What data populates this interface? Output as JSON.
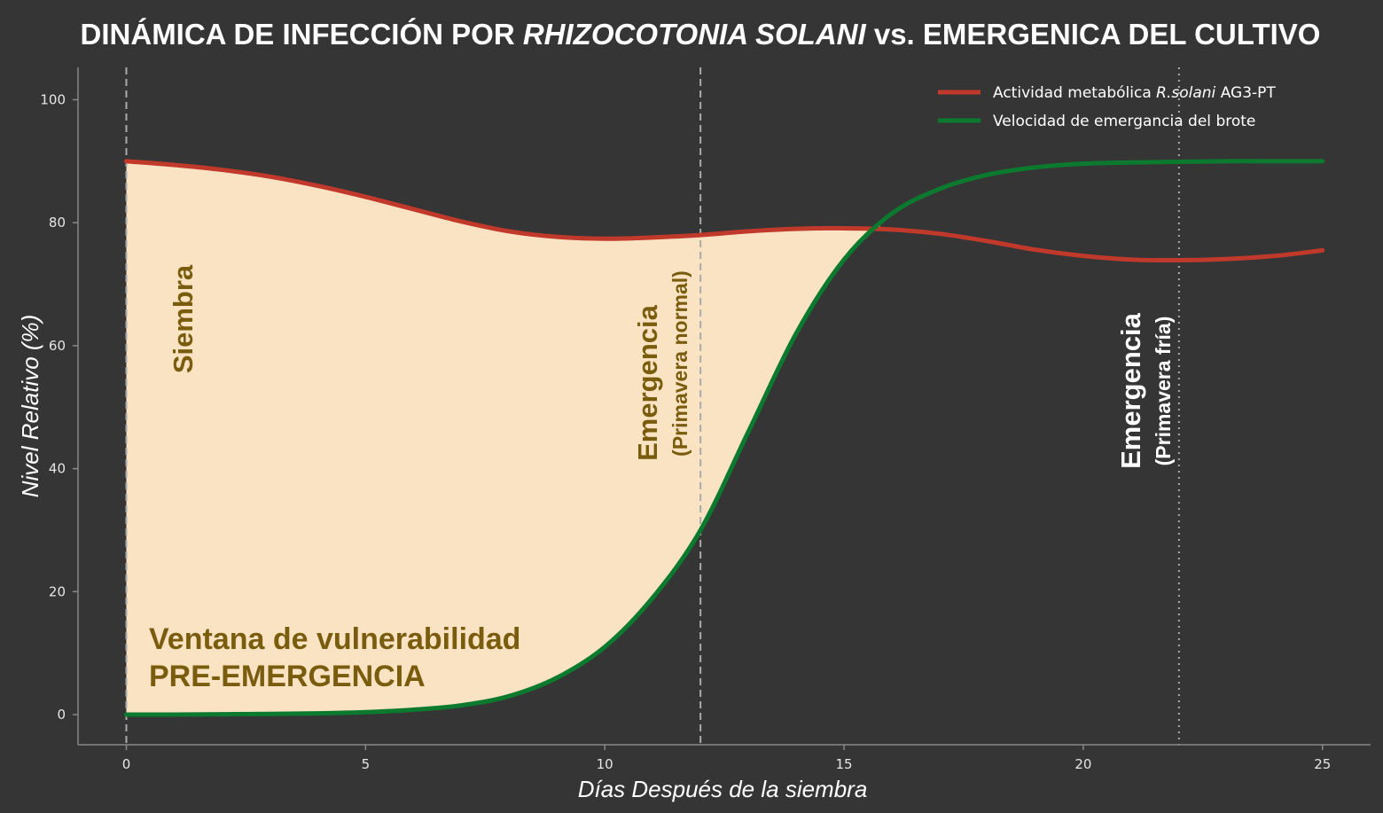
{
  "chart_data": {
    "type": "line",
    "title": {
      "part1": "DINÁMICA DE INFECCIÓN POR ",
      "part2": "RHIZOCOTONIA SOLANI",
      "part3": " vs. EMERGENICA DEL CULTIVO"
    },
    "xlabel": "Días Después de la siembra",
    "ylabel": "Nivel Relativo (%)",
    "xlim": [
      -1,
      26
    ],
    "ylim": [
      -5,
      105
    ],
    "xticks": [
      0,
      5,
      10,
      15,
      20,
      25
    ],
    "yticks": [
      0,
      20,
      40,
      60,
      80,
      100
    ],
    "grid": false,
    "legend_position": "top-right",
    "series": [
      {
        "name_part1": "Actividad metabólica ",
        "name_part2": "R.solani",
        "name_part3": " AG3-PT",
        "color": "#c0392b",
        "x": [
          0,
          1,
          2,
          3,
          4,
          5,
          6,
          7,
          8,
          9,
          10,
          11,
          12,
          13,
          14,
          15,
          16,
          17,
          18,
          19,
          20,
          21,
          22,
          23,
          24,
          25
        ],
        "y": [
          90,
          89.4,
          88.6,
          87.5,
          86,
          84.2,
          82.2,
          80.2,
          78.6,
          77.7,
          77.4,
          77.6,
          78,
          78.6,
          79,
          79.1,
          78.9,
          78.2,
          77,
          75.6,
          74.6,
          74,
          73.9,
          74.1,
          74.6,
          75.5
        ]
      },
      {
        "name": "Velocidad de emergancia del brote",
        "color": "#0b7a2e",
        "x": [
          0,
          1,
          2,
          3,
          4,
          5,
          6,
          7,
          8,
          9,
          10,
          11,
          12,
          13,
          14,
          15,
          16,
          17,
          18,
          19,
          20,
          21,
          22,
          23,
          24,
          25
        ],
        "y": [
          0,
          0,
          0.05,
          0.1,
          0.2,
          0.4,
          0.8,
          1.5,
          3,
          6,
          11,
          19,
          30,
          46,
          62,
          74,
          81.5,
          85.5,
          87.8,
          89,
          89.6,
          89.8,
          89.9,
          90,
          90,
          90
        ]
      }
    ],
    "fill": {
      "color": "#fae3c3",
      "between": "red-green",
      "x_range": [
        0,
        15.75
      ]
    },
    "vlines": [
      {
        "x": 0,
        "style": "dashed",
        "color": "#aaaaaa"
      },
      {
        "x": 12,
        "style": "dashed",
        "color": "#aaaaaa"
      },
      {
        "x": 22,
        "style": "dotted",
        "color": "#aaaaaa"
      }
    ],
    "annotations": {
      "siembra": "Siembra",
      "emergencia_normal": "Emergencia",
      "emergencia_normal_sub": "(Primavera normal)",
      "emergencia_fria": "Emergencia",
      "emergencia_fria_sub": "(Primavera fría)",
      "ventana_line1": "Ventana de vulnerabilidad",
      "ventana_line2": "PRE-EMERGENCIA"
    },
    "colors": {
      "background": "#353535",
      "annotation_gold": "#7a5c0e",
      "axis": "#888888"
    }
  }
}
